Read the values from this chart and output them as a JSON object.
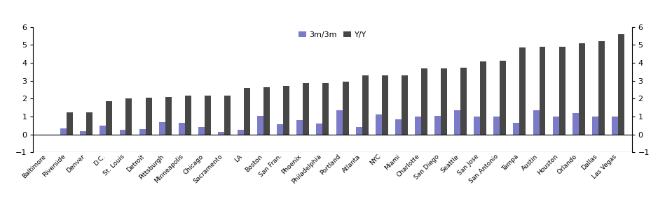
{
  "categories": [
    "Baltimore",
    "Riverside",
    "Denver",
    "D.C.",
    "St. Louis",
    "Detroit",
    "Pittsburgh",
    "Minneapolis",
    "Chicago",
    "Sacramento",
    "LA",
    "Boston",
    "San Fran.",
    "Phoenix",
    "Philadelphia",
    "Portland",
    "Atlanta",
    "NYC",
    "Miami",
    "Charlotte",
    "San Diego",
    "Seattle",
    "San Jose",
    "San Antonio",
    "Tampa",
    "Austin",
    "Houston",
    "Orlando",
    "Dallas",
    "Las Vegas"
  ],
  "bar3m3m": [
    -0.07,
    0.35,
    0.18,
    0.5,
    0.27,
    0.28,
    0.68,
    0.63,
    0.4,
    0.15,
    0.25,
    1.02,
    0.55,
    0.8,
    0.6,
    1.35,
    0.42,
    1.1,
    0.85,
    1.0,
    1.05,
    1.35,
    1.0,
    1.0,
    0.65,
    1.35,
    1.0,
    1.2,
    1.0,
    1.0
  ],
  "baryy": [
    0.0,
    1.22,
    1.25,
    1.85,
    2.0,
    2.05,
    2.1,
    2.15,
    2.18,
    2.18,
    2.58,
    2.63,
    2.72,
    2.85,
    2.87,
    2.95,
    3.28,
    3.28,
    3.3,
    3.68,
    3.68,
    3.73,
    4.08,
    4.13,
    4.85,
    4.88,
    4.88,
    5.08,
    5.2,
    5.6
  ],
  "color_3m": "#7b7bc8",
  "color_yy": "#474747",
  "ylim": [
    -1,
    6
  ],
  "yticks": [
    -1,
    0,
    1,
    2,
    3,
    4,
    5,
    6
  ],
  "legend_labels": [
    "3m/3m",
    "Y/Y"
  ],
  "bar_width": 0.32
}
